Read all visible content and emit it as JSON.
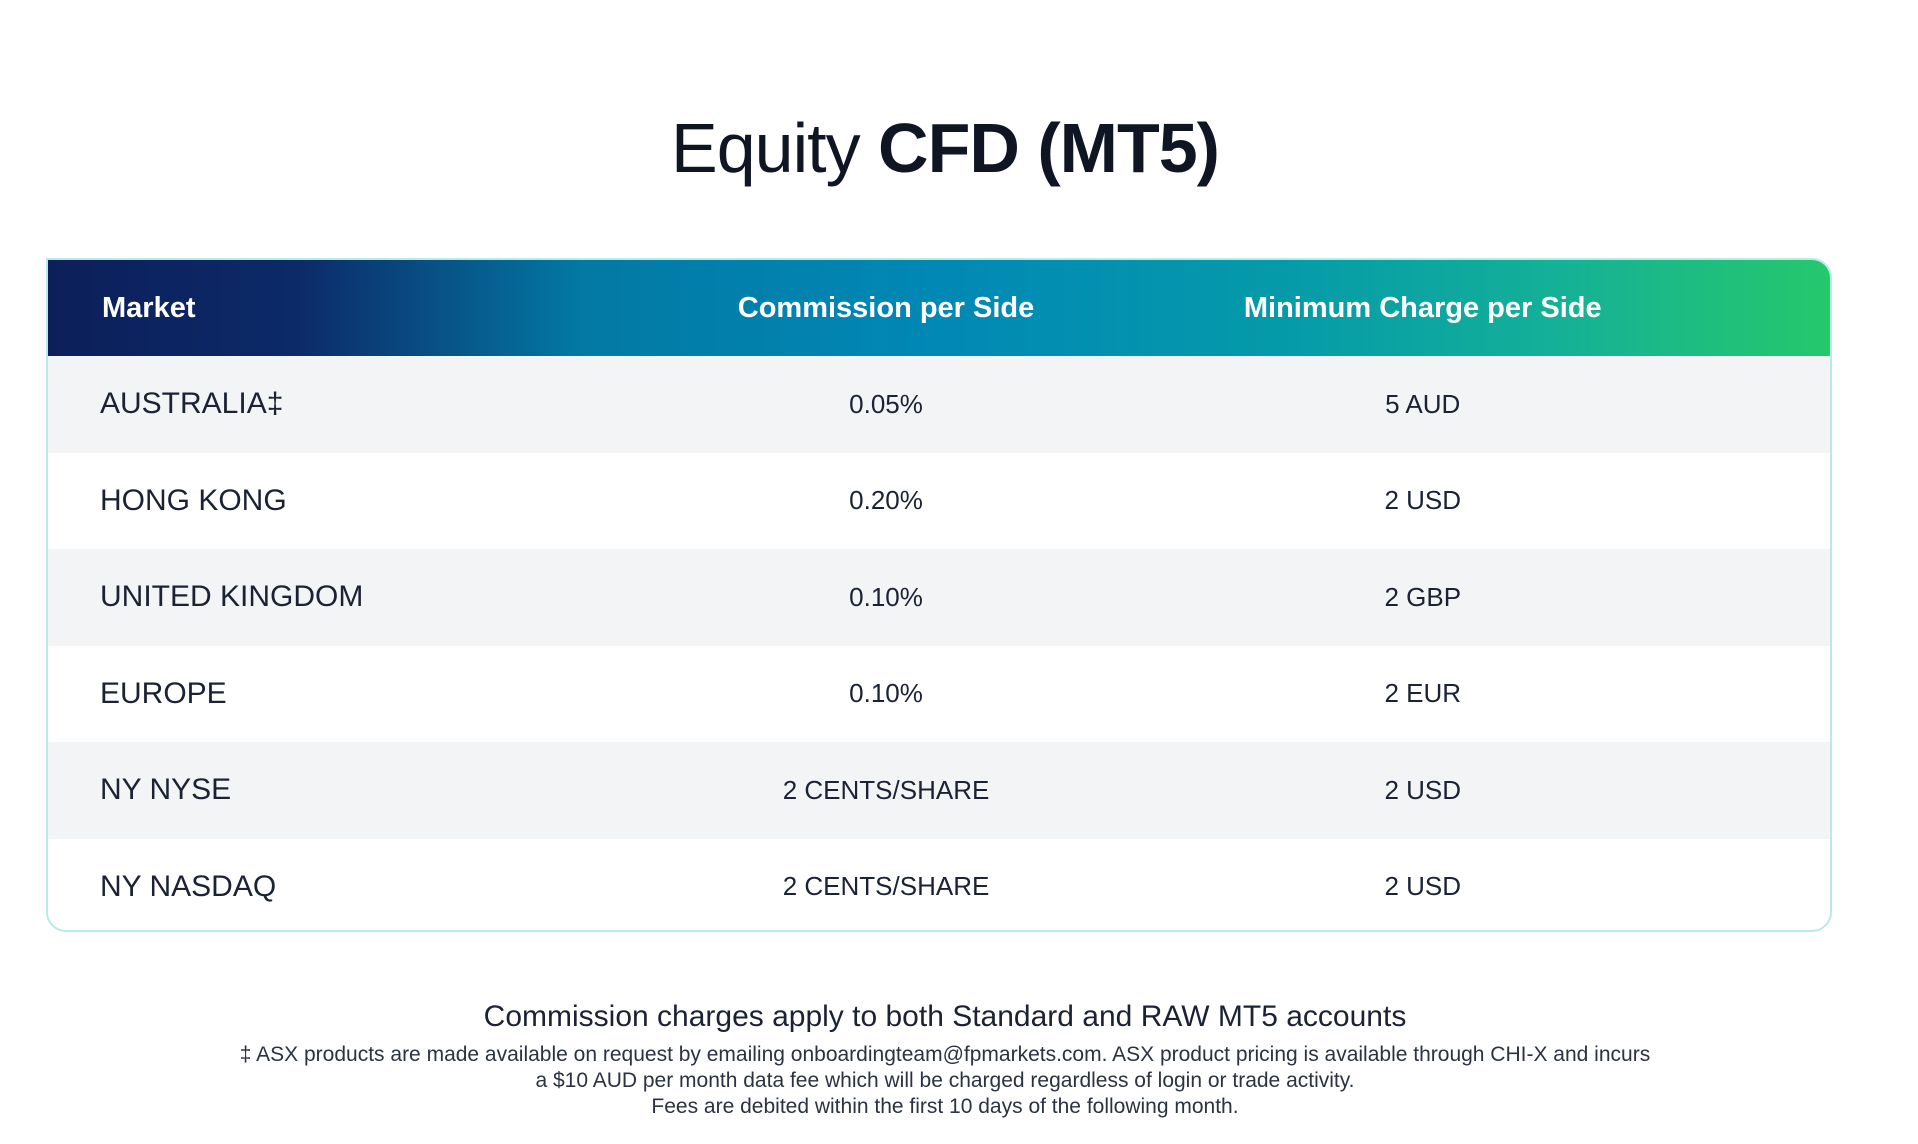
{
  "title": {
    "light": "Equity",
    "bold": "CFD (MT5)"
  },
  "table": {
    "headers": {
      "market": "Market",
      "commission": "Commission per Side",
      "minimum": "Minimum Charge per Side"
    },
    "rows": [
      {
        "market": "AUSTRALIA‡",
        "commission": "0.05%",
        "minimum": "5 AUD"
      },
      {
        "market": "HONG KONG",
        "commission": "0.20%",
        "minimum": "2 USD"
      },
      {
        "market": "UNITED KINGDOM",
        "commission": "0.10%",
        "minimum": "2 GBP"
      },
      {
        "market": "EUROPE",
        "commission": "0.10%",
        "minimum": "2 EUR"
      },
      {
        "market": "NY NYSE",
        "commission": "2 CENTS/SHARE",
        "minimum": "2 USD"
      },
      {
        "market": "NY NASDAQ",
        "commission": "2 CENTS/SHARE",
        "minimum": "2 USD"
      }
    ]
  },
  "footer": {
    "note": "Commission charges apply to both Standard and RAW MT5 accounts",
    "footnote_lines": [
      "‡ ASX products are made available on request by emailing onboardingteam@fpmarkets.com. ASX product pricing is available through CHI-X and incurs",
      "a $10 AUD per month data fee which will be charged regardless of login or trade activity.",
      "Fees are debited within the first 10 days of the following month."
    ]
  },
  "colors": {
    "header_gradient_start": "#0c1f5a",
    "header_gradient_mid": "#0188b5",
    "header_gradient_end": "#25c86b",
    "row_alt": "#f3f4f6"
  }
}
